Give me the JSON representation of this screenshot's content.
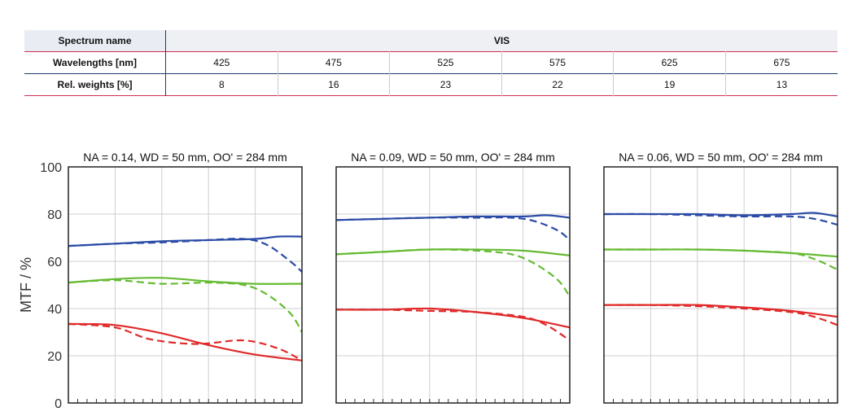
{
  "table": {
    "header": {
      "label": "Spectrum name",
      "value": "VIS"
    },
    "rows": [
      {
        "label": "Wavelengths [nm]",
        "values": [
          "425",
          "475",
          "525",
          "575",
          "625",
          "675"
        ]
      },
      {
        "label": "Rel. weights [%]",
        "values": [
          "8",
          "16",
          "23",
          "22",
          "19",
          "13"
        ]
      }
    ]
  },
  "chart_data": {
    "type": "line",
    "ylabel": "MTF / %",
    "ylim": [
      0,
      100
    ],
    "yticks": [
      "0",
      "20",
      "40",
      "60",
      "80",
      "100"
    ],
    "xlim": [
      0,
      1
    ],
    "grid": true,
    "colors": {
      "blue": "#2b4ba6",
      "green": "#66bb33",
      "red": "#e02a2a"
    },
    "panels": [
      {
        "title": "NA = 0.14, WD = 50 mm, OO' = 284 mm",
        "series": [
          {
            "color": "blue",
            "style": "solid",
            "x": [
              0,
              0.2,
              0.4,
              0.6,
              0.8,
              0.9,
              1.0
            ],
            "y": [
              66.5,
              67.5,
              68.5,
              69,
              69.5,
              70.5,
              70.5
            ]
          },
          {
            "color": "blue",
            "style": "dashed",
            "x": [
              0,
              0.2,
              0.4,
              0.6,
              0.75,
              0.85,
              0.95,
              1.0
            ],
            "y": [
              66.5,
              67.5,
              68,
              69,
              69.5,
              67,
              60,
              55.5
            ]
          },
          {
            "color": "green",
            "style": "solid",
            "x": [
              0,
              0.2,
              0.4,
              0.6,
              0.8,
              1.0
            ],
            "y": [
              51,
              52.5,
              53,
              51.5,
              50.5,
              50.5
            ]
          },
          {
            "color": "green",
            "style": "dashed",
            "x": [
              0,
              0.2,
              0.4,
              0.6,
              0.75,
              0.85,
              0.95,
              1.0
            ],
            "y": [
              51,
              52,
              50.5,
              51,
              50,
              46,
              38,
              30
            ]
          },
          {
            "color": "red",
            "style": "solid",
            "x": [
              0,
              0.2,
              0.4,
              0.6,
              0.8,
              1.0
            ],
            "y": [
              33.5,
              33,
              29.5,
              24.5,
              20.5,
              18
            ]
          },
          {
            "color": "red",
            "style": "dashed",
            "x": [
              0,
              0.2,
              0.35,
              0.55,
              0.75,
              0.9,
              1.0
            ],
            "y": [
              33.5,
              32,
              27,
              25,
              26.5,
              23,
              18
            ]
          }
        ]
      },
      {
        "title": "NA = 0.09, WD = 50 mm, OO' = 284 mm",
        "series": [
          {
            "color": "blue",
            "style": "solid",
            "x": [
              0,
              0.2,
              0.4,
              0.6,
              0.8,
              0.9,
              1.0
            ],
            "y": [
              77.5,
              78,
              78.5,
              79,
              79,
              79.5,
              78.5
            ]
          },
          {
            "color": "blue",
            "style": "dashed",
            "x": [
              0,
              0.2,
              0.4,
              0.6,
              0.75,
              0.85,
              0.95,
              1.0
            ],
            "y": [
              77.5,
              78,
              78.5,
              78.5,
              78.5,
              77,
              73,
              69
            ]
          },
          {
            "color": "green",
            "style": "solid",
            "x": [
              0,
              0.2,
              0.4,
              0.6,
              0.8,
              1.0
            ],
            "y": [
              63,
              64,
              65,
              65,
              64.5,
              62.5
            ]
          },
          {
            "color": "green",
            "style": "dashed",
            "x": [
              0,
              0.2,
              0.4,
              0.6,
              0.75,
              0.85,
              0.95,
              1.0
            ],
            "y": [
              63,
              64,
              65,
              64.5,
              63,
              59,
              52,
              45
            ]
          },
          {
            "color": "red",
            "style": "solid",
            "x": [
              0,
              0.2,
              0.4,
              0.6,
              0.8,
              1.0
            ],
            "y": [
              39.5,
              39.5,
              40,
              38.5,
              36,
              32
            ]
          },
          {
            "color": "red",
            "style": "dashed",
            "x": [
              0,
              0.2,
              0.4,
              0.6,
              0.8,
              0.9,
              1.0
            ],
            "y": [
              39.5,
              39.5,
              39,
              38.5,
              36.5,
              33,
              26.5
            ]
          }
        ]
      },
      {
        "title": "NA = 0.06, WD = 50 mm, OO' = 284 mm",
        "series": [
          {
            "color": "blue",
            "style": "solid",
            "x": [
              0,
              0.2,
              0.4,
              0.6,
              0.8,
              0.9,
              1.0
            ],
            "y": [
              80,
              80,
              80,
              79.5,
              80,
              80.5,
              79
            ]
          },
          {
            "color": "blue",
            "style": "dashed",
            "x": [
              0,
              0.2,
              0.4,
              0.6,
              0.8,
              0.9,
              1.0
            ],
            "y": [
              80,
              80,
              79.5,
              79,
              79,
              78,
              75.5
            ]
          },
          {
            "color": "green",
            "style": "solid",
            "x": [
              0,
              0.2,
              0.4,
              0.6,
              0.8,
              1.0
            ],
            "y": [
              65,
              65,
              65,
              64.5,
              63.5,
              62
            ]
          },
          {
            "color": "green",
            "style": "dashed",
            "x": [
              0,
              0.2,
              0.4,
              0.6,
              0.8,
              0.9,
              1.0
            ],
            "y": [
              65,
              65,
              65,
              64.5,
              63.5,
              61,
              56.5
            ]
          },
          {
            "color": "red",
            "style": "solid",
            "x": [
              0,
              0.2,
              0.4,
              0.6,
              0.8,
              1.0
            ],
            "y": [
              41.5,
              41.5,
              41.5,
              40.5,
              39,
              36.5
            ]
          },
          {
            "color": "red",
            "style": "dashed",
            "x": [
              0,
              0.2,
              0.4,
              0.6,
              0.8,
              0.9,
              1.0
            ],
            "y": [
              41.5,
              41.5,
              41,
              40,
              38.5,
              36.5,
              33
            ]
          }
        ]
      }
    ]
  }
}
